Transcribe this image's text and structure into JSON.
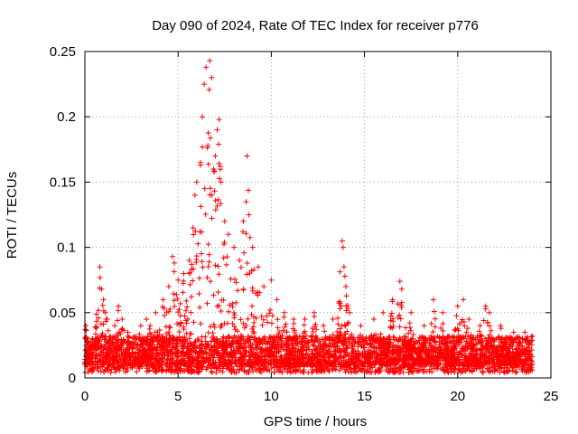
{
  "chart_data": {
    "type": "scatter",
    "title": "Day 090 of 2024, Rate Of TEC Index for receiver p776",
    "xlabel": "GPS time / hours",
    "ylabel": "ROTI / TECUs",
    "xlim": [
      0,
      25
    ],
    "ylim": [
      0,
      0.25
    ],
    "x_ticks": [
      0,
      5,
      10,
      15,
      20,
      25
    ],
    "y_ticks": [
      0,
      0.05,
      0.1,
      0.15,
      0.2,
      0.25
    ],
    "x_tick_labels": [
      "0",
      "5",
      "10",
      "15",
      "20",
      "25"
    ],
    "y_tick_labels": [
      "0",
      "0.05",
      "0.1",
      "0.15",
      "0.2",
      "0.25"
    ],
    "grid": true,
    "marker": "+",
    "marker_color": "#ff0000",
    "series": [
      {
        "name": "ROTI",
        "points_note": "dense scatter 0–24 h; notable peaks listed",
        "points": [
          [
            0.05,
            0.04
          ],
          [
            0.1,
            0.03
          ],
          [
            0.2,
            0.025
          ],
          [
            0.4,
            0.03
          ],
          [
            0.8,
            0.085
          ],
          [
            0.9,
            0.068
          ],
          [
            1.0,
            0.06
          ],
          [
            1.1,
            0.05
          ],
          [
            1.2,
            0.045
          ],
          [
            1.6,
            0.04
          ],
          [
            1.8,
            0.055
          ],
          [
            2.0,
            0.045
          ],
          [
            2.3,
            0.035
          ],
          [
            2.6,
            0.03
          ],
          [
            3.0,
            0.04
          ],
          [
            3.3,
            0.045
          ],
          [
            3.5,
            0.04
          ],
          [
            3.8,
            0.05
          ],
          [
            4.2,
            0.06
          ],
          [
            4.5,
            0.07
          ],
          [
            4.7,
            0.093
          ],
          [
            4.8,
            0.088
          ],
          [
            5.0,
            0.075
          ],
          [
            5.3,
            0.08
          ],
          [
            5.6,
            0.09
          ],
          [
            5.8,
            0.115
          ],
          [
            5.9,
            0.14
          ],
          [
            6.0,
            0.15
          ],
          [
            6.2,
            0.165
          ],
          [
            6.3,
            0.2
          ],
          [
            6.4,
            0.225
          ],
          [
            6.5,
            0.238
          ],
          [
            6.6,
            0.178
          ],
          [
            6.7,
            0.243
          ],
          [
            6.8,
            0.23
          ],
          [
            6.9,
            0.16
          ],
          [
            7.0,
            0.17
          ],
          [
            7.1,
            0.19
          ],
          [
            7.2,
            0.198
          ],
          [
            7.3,
            0.15
          ],
          [
            7.5,
            0.12
          ],
          [
            7.7,
            0.11
          ],
          [
            8.0,
            0.1
          ],
          [
            8.3,
            0.09
          ],
          [
            8.5,
            0.12
          ],
          [
            8.7,
            0.17
          ],
          [
            8.8,
            0.125
          ],
          [
            9.0,
            0.1
          ],
          [
            9.3,
            0.085
          ],
          [
            9.6,
            0.07
          ],
          [
            10.0,
            0.075
          ],
          [
            10.3,
            0.06
          ],
          [
            10.7,
            0.05
          ],
          [
            11.2,
            0.045
          ],
          [
            11.8,
            0.045
          ],
          [
            12.3,
            0.05
          ],
          [
            12.8,
            0.04
          ],
          [
            13.3,
            0.045
          ],
          [
            13.8,
            0.105
          ],
          [
            13.85,
            0.1
          ],
          [
            13.9,
            0.085
          ],
          [
            14.0,
            0.07
          ],
          [
            14.2,
            0.05
          ],
          [
            14.8,
            0.04
          ],
          [
            15.5,
            0.045
          ],
          [
            16.0,
            0.05
          ],
          [
            16.5,
            0.06
          ],
          [
            16.9,
            0.074
          ],
          [
            17.0,
            0.068
          ],
          [
            17.5,
            0.05
          ],
          [
            18.2,
            0.04
          ],
          [
            18.7,
            0.06
          ],
          [
            19.2,
            0.05
          ],
          [
            20.0,
            0.055
          ],
          [
            20.3,
            0.06
          ],
          [
            20.6,
            0.045
          ],
          [
            21.2,
            0.04
          ],
          [
            21.5,
            0.055
          ],
          [
            21.7,
            0.05
          ],
          [
            22.3,
            0.04
          ],
          [
            23.0,
            0.035
          ],
          [
            23.6,
            0.035
          ],
          [
            24.0,
            0.032
          ]
        ]
      }
    ]
  }
}
